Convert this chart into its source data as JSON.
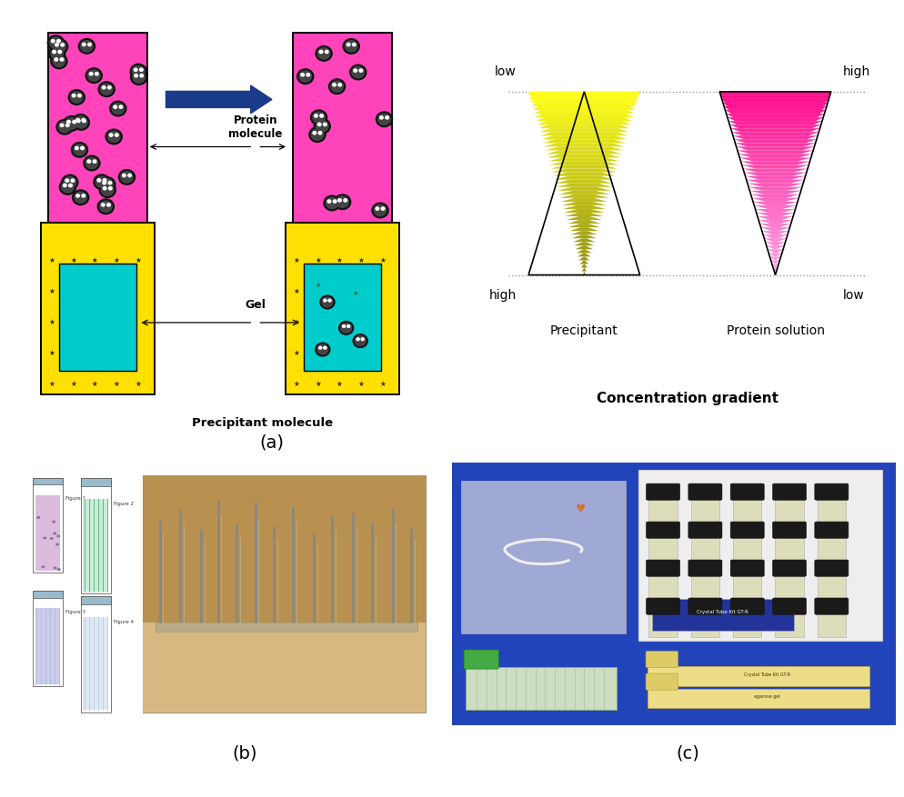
{
  "figure_width": 9.95,
  "figure_height": 8.77,
  "bg_color": "#ffffff",
  "label_a": "(a)",
  "label_b": "(b)",
  "label_c": "(c)",
  "label_fontsize": 14,
  "panel_a": {
    "arrow_color": "#1a3a8a",
    "magenta_color": "#FF44BB",
    "yellow_color": "#FFE000",
    "cyan_color": "#00CCCC",
    "protein_label": "Protein\nmolecule",
    "gel_label": "Gel",
    "precipitant_label": "Precipitant molecule",
    "conc_gradient_text": "Concentration gradient",
    "triangle_yellow_top": "#FFFF88",
    "triangle_yellow_bot": "#DDDD00",
    "triangle_magenta_top": "#FF44CC",
    "triangle_magenta_bot": "#FFAAEE"
  }
}
